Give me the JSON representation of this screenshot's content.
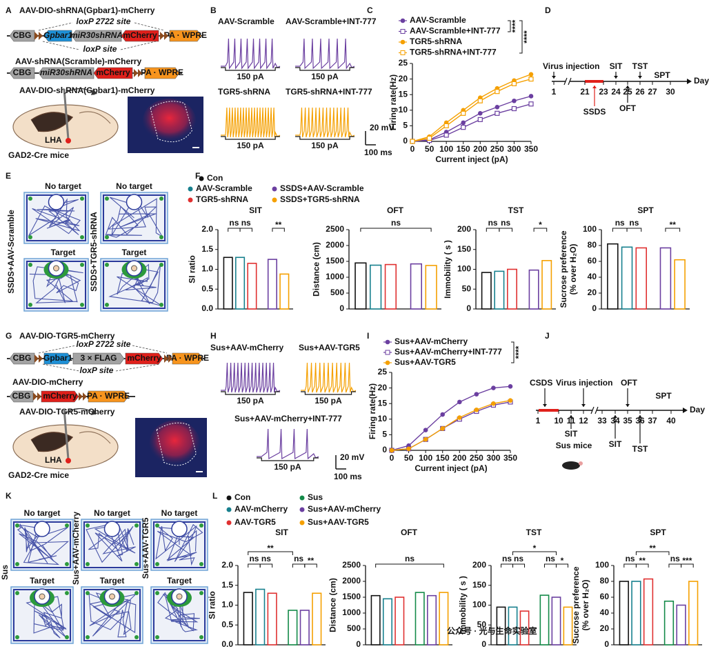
{
  "panels": {
    "A": {
      "letter": "A",
      "vector1": {
        "title": "AAV-DIO-shRNA(Gpbar1)-mCherry",
        "parts": [
          "CBG",
          "Gpbar1",
          "miR30shRNA",
          "mCherry",
          "PA · WPRE"
        ],
        "lox_top": "loxP 2722 site",
        "lox_bottom": "loxP site"
      },
      "vector2": {
        "title": "AAV-shRNA(Scramble)-mCherry",
        "parts": [
          "CBG",
          "miR30shRNA",
          "mCherry",
          "PA · WPRE"
        ]
      },
      "injection": "AAV-DIO-shRNA(Gpbar1)-mCherry",
      "region": "LHA",
      "mice": "GAD2-Cre mice"
    },
    "B": {
      "letter": "B",
      "traces": [
        "AAV-Scramble",
        "AAV-Scramble+INT-777",
        "TGR5-shRNA",
        "TGR5-shRNA+INT-777"
      ],
      "stimulus": [
        "150 pA",
        "150 pA",
        "150 pA",
        "150 pA"
      ],
      "scale_v": "20 mV",
      "scale_t": "100 ms"
    },
    "C": {
      "letter": "C",
      "type": "line",
      "x": [
        0,
        50,
        100,
        150,
        200,
        250,
        300,
        350
      ],
      "xlim": [
        0,
        350
      ],
      "xticks": [
        0,
        50,
        100,
        150,
        200,
        250,
        300,
        350
      ],
      "ylim": [
        0,
        25
      ],
      "yticks": [
        0,
        5,
        10,
        15,
        20,
        25
      ],
      "xlabel": "Current inject (pA)",
      "ylabel": "Firing rate(Hz)",
      "significance": [
        "****",
        "****"
      ],
      "series": [
        {
          "name": "AAV-Scramble",
          "color": "#6b3fa0",
          "marker": "filled",
          "values": [
            0,
            0.5,
            3,
            6,
            9,
            11,
            13,
            14.5
          ]
        },
        {
          "name": "AAV-Scramble+INT-777",
          "color": "#6b3fa0",
          "marker": "open",
          "values": [
            0,
            0.3,
            2,
            4.5,
            7,
            9,
            10.5,
            12
          ]
        },
        {
          "name": "TGR5-shRNA",
          "color": "#f5a000",
          "marker": "filled",
          "values": [
            0,
            1.5,
            6,
            10,
            14,
            17,
            19.5,
            21.5
          ]
        },
        {
          "name": "TGR5-shRNA+INT-777",
          "color": "#f5a000",
          "marker": "open",
          "values": [
            0,
            1,
            5,
            9,
            13,
            16,
            18.5,
            20
          ]
        }
      ]
    },
    "D": {
      "letter": "D",
      "days": [
        1,
        21,
        23,
        24,
        25,
        26,
        27,
        30
      ],
      "axis_label": "Day",
      "events_above": [
        "Virus injection",
        "SIT",
        "TST",
        "SPT"
      ],
      "events_below": [
        "SSDS",
        "OFT"
      ]
    },
    "E": {
      "letter": "E",
      "columns": [
        {
          "side": "SSDS+AAV-Scramble",
          "top": "No target",
          "bottom": "Target"
        },
        {
          "side": "SSDS+TGR5-shRNA",
          "top": "No target",
          "bottom": "Target"
        }
      ]
    },
    "F": {
      "letter": "F",
      "legend": [
        "Con",
        "AAV-Scramble",
        "TGR5-shRNA",
        "SSDS+AAV-Scramble",
        "SSDS+TGR5-shRNA"
      ],
      "colors": [
        "#111111",
        "#17808e",
        "#e03030",
        "#6b3fa0",
        "#f5a000"
      ],
      "charts": [
        {
          "type": "bar",
          "title": "SIT",
          "ylabel": [
            "SI ratio"
          ],
          "values": [
            1.3,
            1.3,
            1.15,
            1.25,
            0.88
          ],
          "ylim": [
            0,
            2
          ],
          "yticks": [
            {
              "value": 0,
              "label": "0.0"
            },
            0.5,
            {
              "value": 1,
              "label": "1.0"
            },
            1.5,
            {
              "value": 2,
              "label": "2.0"
            }
          ],
          "annotations": [
            "ns",
            "ns",
            "**"
          ]
        },
        {
          "type": "bar",
          "title": "OFT",
          "ylabel": [
            "Distance (cm)"
          ],
          "values": [
            1450,
            1380,
            1400,
            1420,
            1370
          ],
          "ylim": [
            0,
            2500
          ],
          "yticks": [
            0,
            500,
            1000,
            1500,
            2000,
            2500
          ],
          "annotations": [
            "ns"
          ]
        },
        {
          "type": "bar",
          "title": "TST",
          "ylabel": [
            "Immobility ( s )"
          ],
          "values": [
            92,
            95,
            100,
            98,
            122
          ],
          "ylim": [
            0,
            200
          ],
          "yticks": [
            0,
            50,
            100,
            150,
            200
          ],
          "annotations": [
            "ns",
            "ns",
            "*"
          ]
        },
        {
          "type": "bar",
          "title": "SPT",
          "ylabel": [
            "Sucrose preference",
            "(% over H₂O)"
          ],
          "values": [
            82,
            78,
            77,
            77,
            62
          ],
          "ylim": [
            0,
            100
          ],
          "yticks": [
            0,
            20,
            40,
            60,
            80,
            100
          ],
          "annotations": [
            "ns",
            "ns",
            "**"
          ]
        }
      ]
    },
    "G": {
      "letter": "G",
      "vector1": {
        "title": "AAV-DIO-TGR5-mCherry",
        "parts": [
          "CBG",
          "Gpbar1",
          "3 × FLAG",
          "mCherry",
          "PA · WPRE"
        ],
        "lox_top": "loxP 2722 site",
        "lox_bottom": "loxP site"
      },
      "vector2": {
        "title": "AAV-DIO-mCherry",
        "parts": [
          "CBG",
          "mCherry",
          "PA · WPRE"
        ]
      },
      "injection": "AAV-DIO-TGR5-mCherry",
      "region": "LHA",
      "mice": "GAD2-Cre mice"
    },
    "H": {
      "letter": "H",
      "traces": [
        "Sus+AAV-mCherry",
        "Sus+AAV-TGR5",
        "Sus+AAV-mCherry+INT-777"
      ],
      "stimulus": [
        "150 pA",
        "150 pA",
        "150 pA"
      ],
      "scale_v": "20 mV",
      "scale_t": "100 ms"
    },
    "I": {
      "letter": "I",
      "type": "line",
      "x": [
        0,
        50,
        100,
        150,
        200,
        250,
        300,
        350
      ],
      "xlim": [
        0,
        350
      ],
      "xticks": [
        0,
        50,
        100,
        150,
        200,
        250,
        300,
        350
      ],
      "ylim": [
        0,
        25
      ],
      "yticks": [
        0,
        5,
        10,
        15,
        20,
        25
      ],
      "xlabel": "Current inject (pA)",
      "ylabel": "Firing rate(Hz)",
      "significance": [
        "****"
      ],
      "series": [
        {
          "name": "Sus+AAV-mCherry",
          "color": "#6b3fa0",
          "marker": "filled",
          "values": [
            0,
            1.5,
            6.5,
            11.5,
            15.5,
            18,
            20,
            20.5
          ]
        },
        {
          "name": "Sus+AAV-mCherry+INT-777",
          "color": "#6b3fa0",
          "marker": "open",
          "values": [
            0,
            0.5,
            3.5,
            7,
            10,
            12.5,
            14.5,
            15.5
          ]
        },
        {
          "name": "Sus+AAV-TGR5",
          "color": "#f5a000",
          "marker": "filled",
          "values": [
            0,
            0.5,
            3.5,
            7,
            10.5,
            13,
            15,
            16
          ]
        }
      ]
    },
    "J": {
      "letter": "J",
      "days": [
        1,
        10,
        11,
        12,
        33,
        34,
        35,
        36,
        37,
        40
      ],
      "axis_label": "Day",
      "events_above": [
        "CSDS",
        "Virus injection",
        "OFT",
        "SPT"
      ],
      "events_below": [
        "SIT",
        "SIT",
        "TST"
      ],
      "group": "Sus mice"
    },
    "K": {
      "letter": "K",
      "columns": [
        {
          "side": "Sus",
          "top": "No target",
          "bottom": "Target"
        },
        {
          "side": "Sus+AAV-mCherry",
          "top": "No target",
          "bottom": "Target"
        },
        {
          "side": "Sus+AAV-TGR5",
          "top": "No target",
          "bottom": "Target"
        }
      ]
    },
    "L": {
      "letter": "L",
      "legend": [
        "Con",
        "AAV-mCherry",
        "AAV-TGR5",
        "Sus",
        "Sus+AAV-mCherry",
        "Sus+AAV-TGR5"
      ],
      "colors": [
        "#111111",
        "#17808e",
        "#e03030",
        "#138a48",
        "#6b3fa0",
        "#f5a000"
      ],
      "charts": [
        {
          "type": "bar",
          "title": "SIT",
          "ylabel": [
            "SI ratio"
          ],
          "values": [
            1.32,
            1.4,
            1.3,
            0.87,
            0.87,
            1.3
          ],
          "ylim": [
            0,
            2
          ],
          "yticks": [
            {
              "value": 0,
              "label": "0.0"
            },
            0.5,
            {
              "value": 1,
              "label": "1.0"
            },
            1.5,
            {
              "value": 2,
              "label": "2.0"
            }
          ],
          "annotations": [
            "**",
            "ns",
            "ns",
            "ns",
            "**"
          ]
        },
        {
          "type": "bar",
          "title": "OFT",
          "ylabel": [
            "Distance (cm)"
          ],
          "values": [
            1550,
            1450,
            1500,
            1650,
            1550,
            1650
          ],
          "ylim": [
            0,
            2500
          ],
          "yticks": [
            0,
            500,
            1000,
            1500,
            2000,
            2500
          ],
          "annotations": [
            "ns"
          ]
        },
        {
          "type": "bar",
          "title": "TST",
          "ylabel": [
            "Immobility ( s )"
          ],
          "values": [
            95,
            95,
            85,
            125,
            120,
            95
          ],
          "ylim": [
            0,
            200
          ],
          "yticks": [
            0,
            50,
            100,
            150,
            200
          ],
          "annotations": [
            "*",
            "ns",
            "ns",
            "ns",
            "*"
          ]
        },
        {
          "type": "bar",
          "title": "SPT",
          "ylabel": [
            "Sucrose preference",
            "(% over H₂O)"
          ],
          "values": [
            80,
            80,
            83,
            55,
            50,
            80
          ],
          "ylim": [
            0,
            100
          ],
          "yticks": [
            0,
            20,
            40,
            60,
            80,
            100
          ],
          "annotations": [
            "**",
            "ns",
            "**",
            "ns",
            "***"
          ]
        }
      ]
    }
  },
  "watermark": "公众号 · 光与生命实验室"
}
